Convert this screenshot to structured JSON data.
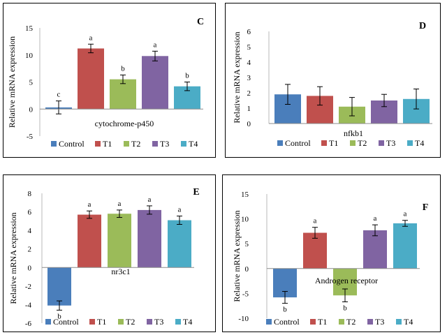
{
  "colors": {
    "Control": "#4a7ebb",
    "T1": "#c0504d",
    "T2": "#9bbb59",
    "T3": "#8064a2",
    "T4": "#4bacc6"
  },
  "chart_data": [
    {
      "type": "bar",
      "panel_letter": "C",
      "title": "cytochrome-p450",
      "ylabel": "Relative mRNA expression",
      "ylim": [
        -5,
        15
      ],
      "yticks": [
        -5,
        0,
        5,
        10,
        15
      ],
      "categories": [
        "Control",
        "T1",
        "T2",
        "T3",
        "T4"
      ],
      "values": [
        0.3,
        11.2,
        5.5,
        9.8,
        4.2
      ],
      "errors": [
        1.2,
        0.8,
        0.8,
        0.9,
        0.8
      ],
      "sig_letters": [
        "c",
        "a",
        "b",
        "a",
        "b"
      ],
      "legend": [
        "Control",
        "T1",
        "T2",
        "T3",
        "T4"
      ]
    },
    {
      "type": "bar",
      "panel_letter": "D",
      "title": "nfkb1",
      "ylabel": "Relative mRNA expression",
      "ylim": [
        0,
        6
      ],
      "yticks": [
        0,
        1,
        2,
        3,
        4,
        5,
        6
      ],
      "categories": [
        "Control",
        "T1",
        "T2",
        "T3",
        "T4"
      ],
      "values": [
        1.9,
        1.8,
        1.1,
        1.5,
        1.6
      ],
      "errors": [
        0.65,
        0.6,
        0.6,
        0.4,
        0.65
      ],
      "sig_letters": [
        "",
        "",
        "",
        "",
        ""
      ],
      "legend": [
        "Control",
        "T1",
        "T2",
        "T3",
        "T4"
      ]
    },
    {
      "type": "bar",
      "panel_letter": "E",
      "title": "nr3c1",
      "ylabel": "Relative mRNA expression",
      "ylim": [
        -6,
        8
      ],
      "yticks": [
        -6,
        -4,
        -2,
        0,
        2,
        4,
        6,
        8
      ],
      "categories": [
        "Control",
        "T1",
        "T2",
        "T3",
        "T4"
      ],
      "values": [
        -4.1,
        5.7,
        5.8,
        6.2,
        5.1
      ],
      "errors": [
        0.5,
        0.4,
        0.4,
        0.45,
        0.45
      ],
      "sig_letters": [
        "b",
        "a",
        "a",
        "a",
        "a"
      ],
      "legend": [
        "Control",
        "T1",
        "T2",
        "T3",
        "T4"
      ]
    },
    {
      "type": "bar",
      "panel_letter": "F",
      "title": "Androgen receptor",
      "ylabel": "Relative mRNA expression",
      "ylim": [
        -10,
        15
      ],
      "yticks": [
        -10,
        -5,
        0,
        5,
        10,
        15
      ],
      "categories": [
        "Control",
        "T1",
        "T2",
        "T3",
        "T4"
      ],
      "values": [
        -5.8,
        7.2,
        -5.4,
        7.7,
        9.1
      ],
      "errors": [
        1.2,
        1.1,
        1.3,
        1.1,
        0.6
      ],
      "sig_letters": [
        "b",
        "a",
        "b",
        "a",
        "a"
      ],
      "legend": [
        "Control",
        "T1",
        "T2",
        "T3",
        "T4"
      ]
    }
  ]
}
